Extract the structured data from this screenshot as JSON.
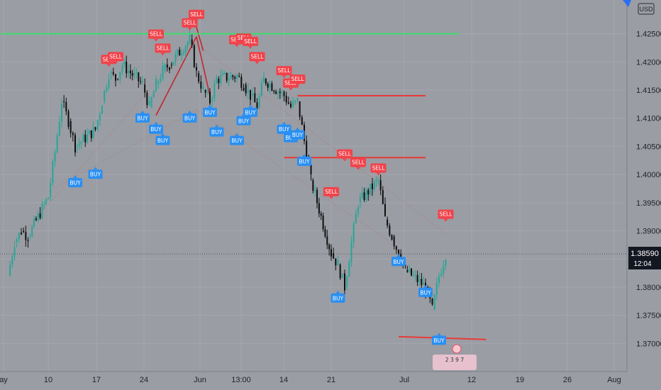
{
  "chart_data": {
    "type": "candlestick",
    "currency": "USD",
    "x_labels": [
      "ay",
      "10",
      "17",
      "24",
      "Jun",
      "13:00",
      "14",
      "21",
      "Jul",
      "12",
      "19",
      "26",
      "Aug"
    ],
    "y_ticks": [
      "1.42500",
      "1.42000",
      "1.41500",
      "1.41000",
      "1.40500",
      "1.40000",
      "1.39500",
      "1.39000",
      "1.38500",
      "1.38000",
      "1.37500",
      "1.37000"
    ],
    "ylim": [
      1.3655,
      1.4305
    ],
    "last_price": "1.38590",
    "last_price_value": 1.3859,
    "countdown": "12:04",
    "buy_label": "BUY",
    "sell_label": "SELL",
    "colors": {
      "background": "#9a9da3",
      "up": "#26a69a",
      "down": "#0e0e0e",
      "sell": "#f0434b",
      "buy": "#2a8ff2",
      "resistance_green": "#3ddc6e",
      "line_red": "#e83a3a"
    },
    "close_series": [
      {
        "date": "May 04",
        "close": 1.382
      },
      {
        "date": "May 05",
        "close": 1.388
      },
      {
        "date": "May 06",
        "close": 1.39
      },
      {
        "date": "May 07",
        "close": 1.389
      },
      {
        "date": "May 10",
        "close": 1.396
      },
      {
        "date": "May 11",
        "close": 1.404
      },
      {
        "date": "May 12",
        "close": 1.413
      },
      {
        "date": "May 13",
        "close": 1.4095
      },
      {
        "date": "May 14",
        "close": 1.405
      },
      {
        "date": "May 17",
        "close": 1.408
      },
      {
        "date": "May 18",
        "close": 1.413
      },
      {
        "date": "May 19",
        "close": 1.418
      },
      {
        "date": "May 20",
        "close": 1.417
      },
      {
        "date": "May 21",
        "close": 1.4195
      },
      {
        "date": "May 24",
        "close": 1.416
      },
      {
        "date": "May 25",
        "close": 1.412
      },
      {
        "date": "May 26",
        "close": 1.416
      },
      {
        "date": "May 27",
        "close": 1.4185
      },
      {
        "date": "May 28",
        "close": 1.4195
      },
      {
        "date": "May 31",
        "close": 1.424
      },
      {
        "date": "Jun 01",
        "close": 1.418
      },
      {
        "date": "Jun 02",
        "close": 1.415
      },
      {
        "date": "Jun 03",
        "close": 1.413
      },
      {
        "date": "Jun 04",
        "close": 1.417
      },
      {
        "date": "Jun 07",
        "close": 1.4175
      },
      {
        "date": "Jun 08",
        "close": 1.416
      },
      {
        "date": "Jun 09",
        "close": 1.414
      },
      {
        "date": "Jun 10",
        "close": 1.412
      },
      {
        "date": "Jun 11",
        "close": 1.417
      },
      {
        "date": "Jun 14",
        "close": 1.414
      },
      {
        "date": "Jun 15",
        "close": 1.412
      },
      {
        "date": "Jun 16",
        "close": 1.413
      },
      {
        "date": "Jun 17",
        "close": 1.406
      },
      {
        "date": "Jun 18",
        "close": 1.399
      },
      {
        "date": "Jun 21",
        "close": 1.386
      },
      {
        "date": "Jun 22",
        "close": 1.384
      },
      {
        "date": "Jun 23",
        "close": 1.38
      },
      {
        "date": "Jun 24",
        "close": 1.388
      },
      {
        "date": "Jun 25",
        "close": 1.395
      },
      {
        "date": "Jun 28",
        "close": 1.399
      },
      {
        "date": "Jun 29",
        "close": 1.392
      },
      {
        "date": "Jun 30",
        "close": 1.389
      },
      {
        "date": "Jul 01",
        "close": 1.386
      },
      {
        "date": "Jul 02",
        "close": 1.383
      },
      {
        "date": "Jul 05",
        "close": 1.38
      },
      {
        "date": "Jul 06",
        "close": 1.376
      },
      {
        "date": "Jul 07",
        "close": 1.382
      },
      {
        "date": "Jul 08",
        "close": 1.3859
      }
    ],
    "sell_signals": [
      {
        "date": "May 19",
        "price": 1.419
      },
      {
        "date": "May 20",
        "price": 1.4195
      },
      {
        "date": "May 26",
        "price": 1.4235
      },
      {
        "date": "May 27",
        "price": 1.421
      },
      {
        "date": "May 31",
        "price": 1.4255
      },
      {
        "date": "Jun 01",
        "price": 1.427
      },
      {
        "date": "Jun 07",
        "price": 1.4225
      },
      {
        "date": "Jun 08",
        "price": 1.4228
      },
      {
        "date": "Jun 09",
        "price": 1.4222
      },
      {
        "date": "Jun 10",
        "price": 1.4195
      },
      {
        "date": "Jun 14",
        "price": 1.417
      },
      {
        "date": "Jun 15",
        "price": 1.4148
      },
      {
        "date": "Jun 16",
        "price": 1.4155
      },
      {
        "date": "Jun 23",
        "price": 1.4022
      },
      {
        "date": "Jun 25",
        "price": 1.4007
      },
      {
        "date": "Jun 28",
        "price": 1.3997
      },
      {
        "date": "Jun 21",
        "price": 1.3955
      },
      {
        "date": "Jul 08",
        "price": 1.3915
      }
    ],
    "buy_signals": [
      {
        "date": "May 17",
        "price": 1.4015
      },
      {
        "date": "May 14",
        "price": 1.4
      },
      {
        "date": "May 24",
        "price": 1.4115
      },
      {
        "date": "May 26",
        "price": 1.4095
      },
      {
        "date": "May 27",
        "price": 1.4075
      },
      {
        "date": "May 31",
        "price": 1.4115
      },
      {
        "date": "Jun 03",
        "price": 1.4125
      },
      {
        "date": "Jun 04",
        "price": 1.409
      },
      {
        "date": "Jun 07",
        "price": 1.4075
      },
      {
        "date": "Jun 08",
        "price": 1.411
      },
      {
        "date": "Jun 09",
        "price": 1.4125
      },
      {
        "date": "Jun 14",
        "price": 1.4095
      },
      {
        "date": "Jun 15",
        "price": 1.408
      },
      {
        "date": "Jun 16",
        "price": 1.4085
      },
      {
        "date": "Jun 17",
        "price": 1.4038
      },
      {
        "date": "Jun 22",
        "price": 1.3795
      },
      {
        "date": "Jul 01",
        "price": 1.386
      },
      {
        "date": "Jul 05",
        "price": 1.3805
      },
      {
        "date": "Jul 07",
        "price": 1.372
      }
    ],
    "hlines": [
      {
        "name": "resistance",
        "price": 1.425,
        "from": "May 03",
        "to": "Jul 10",
        "color": "#3ddc6e"
      },
      {
        "name": "level-a",
        "price": 1.414,
        "from": "Jun 16",
        "to": "Jul 05",
        "color": "#e83a3a"
      },
      {
        "name": "level-b",
        "price": 1.403,
        "from": "Jun 14",
        "to": "Jul 05",
        "color": "#e83a3a"
      },
      {
        "name": "support",
        "price": 1.3712,
        "from": "Jul 01",
        "to": "Jul 14",
        "color": "#e83a3a",
        "end_price": 1.3707
      }
    ],
    "grid": true,
    "legend": "none"
  }
}
